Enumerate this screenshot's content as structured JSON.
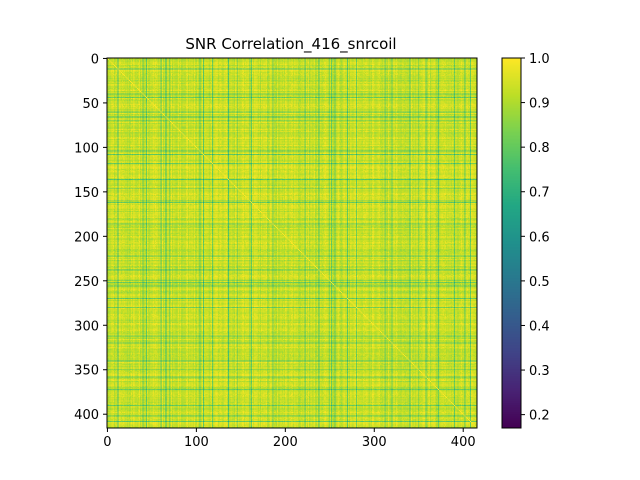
{
  "chart_data": {
    "type": "heatmap",
    "title": "SNR Correlation_416_snrcoil",
    "matrix_size": 416,
    "xlim": [
      0,
      416
    ],
    "ylim": [
      416,
      0
    ],
    "x_ticks": [
      0,
      100,
      200,
      300,
      400
    ],
    "y_ticks": [
      0,
      50,
      100,
      150,
      200,
      250,
      300,
      350,
      400
    ],
    "colorbar": {
      "colormap": "viridis",
      "range": [
        0.17,
        1.0
      ],
      "ticks": [
        "0.2",
        "0.3",
        "0.4",
        "0.5",
        "0.6",
        "0.7",
        "0.8",
        "0.9",
        "1.0"
      ]
    },
    "values_summary": {
      "diagonal": 1.0,
      "typical_off_diagonal": 0.9,
      "approx_min": 0.75
    },
    "low_correlation_rows_cols": [
      12,
      40,
      44,
      60,
      66,
      70,
      104,
      108,
      118,
      136,
      146,
      160,
      162,
      186,
      222,
      238,
      250,
      252,
      256,
      270,
      280,
      312,
      320,
      340,
      350,
      358,
      372,
      390,
      402,
      408
    ]
  }
}
